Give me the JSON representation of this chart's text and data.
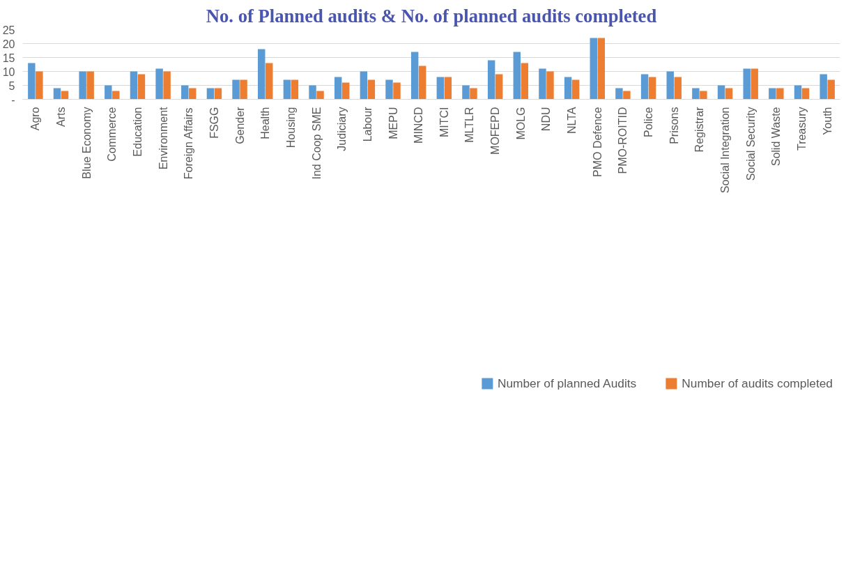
{
  "chart_data": {
    "type": "bar",
    "title": "No. of Planned audits & No. of planned audits completed",
    "categories": [
      "Agro",
      "Arts",
      "Blue Economy",
      "Commerce",
      "Education",
      "Environment",
      "Foreign Affairs",
      "FSGG",
      "Gender",
      "Health",
      "Housing",
      "Ind Coop SME",
      "Judiciary",
      "Labour",
      "MEPU",
      "MINCD",
      "MITCI",
      "MLTLR",
      "MOFEPD",
      "MOLG",
      "NDU",
      "NLTA",
      "PMO Defence",
      "PMO-ROITID",
      "Police",
      "Prisons",
      "Registrar",
      "Social Integration",
      "Social Security",
      "Solid Waste",
      "Treasury",
      "Youth"
    ],
    "series": [
      {
        "name": "Number of planned Audits",
        "color": "#5b9bd5",
        "values": [
          13,
          4,
          10,
          5,
          10,
          11,
          5,
          4,
          7,
          18,
          7,
          5,
          8,
          10,
          7,
          17,
          8,
          5,
          14,
          17,
          11,
          8,
          22,
          4,
          9,
          10,
          4,
          5,
          11,
          4,
          5,
          9
        ]
      },
      {
        "name": "Number of audits completed",
        "color": "#ed7d31",
        "values": [
          10,
          3,
          10,
          3,
          9,
          10,
          4,
          4,
          7,
          13,
          7,
          3,
          6,
          7,
          6,
          12,
          8,
          4,
          9,
          13,
          10,
          7,
          22,
          3,
          8,
          8,
          3,
          4,
          11,
          4,
          4,
          7
        ]
      }
    ],
    "ylim": [
      0,
      25
    ],
    "yticks": [
      {
        "value": 0,
        "label": "-"
      },
      5,
      10,
      15,
      20,
      25
    ],
    "grid": "y",
    "legend": "bottom"
  }
}
